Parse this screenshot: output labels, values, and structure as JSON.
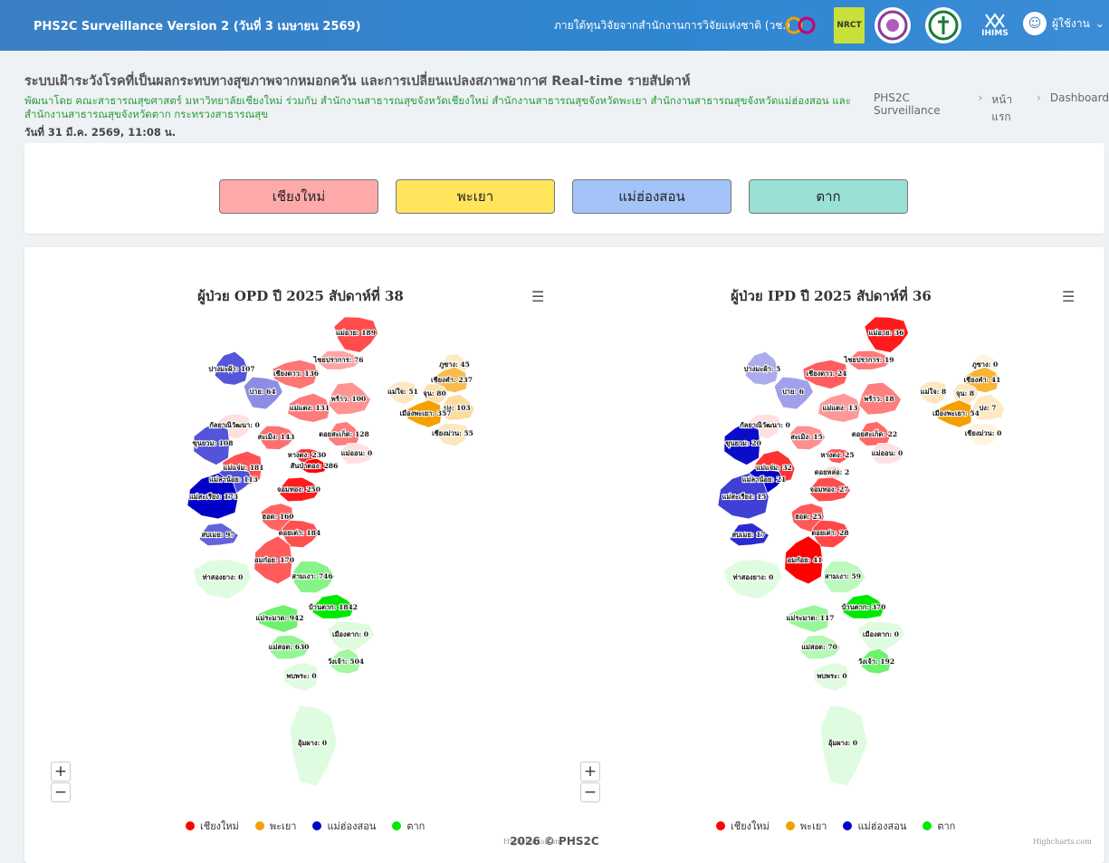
{
  "topbar": {
    "title": "PHS2C Surveillance Version 2 (วันที่ 3 เมษายน 2569)",
    "funding": "ภายใต้ทุนวิจัยจากสำนักงานการวิจัยแห่งชาติ (วช.)",
    "user": "ผู้ใช้งาน",
    "logos": [
      "NRCT",
      "IHIMS"
    ]
  },
  "header": {
    "title": "ระบบเฝ้าระวังโรคที่เป็นผลกระทบทางสุขภาพจากหมอกควัน และการเปลี่ยนแปลงสภาพอากาศ Real-time รายสัปดาห์",
    "subtitle": "พัฒนาโดย คณะสาธารณสุขศาสตร์ มหาวิทยาลัยเชียงใหม่ ร่วมกับ สำนักงานสาธารณสุขจังหวัดเชียงใหม่ สำนักงานสาธารณสุขจังหวัดพะเยา สำนักงานสาธารณสุขจังหวัดแม่ฮ่องสอน และ สำนักงานสาธารณสุขจังหวัดตาก กระทรวงสาธารณสุข",
    "date": "วันที่ 31 มี.ค. 2569, 11:08 น."
  },
  "breadcrumb": [
    "PHS2C Surveillance",
    "หน้าแรก",
    "Dashboard"
  ],
  "provinces": [
    {
      "label": "เชียงใหม่",
      "color": "#ffaaaa"
    },
    {
      "label": "พะเยา",
      "color": "#ffe45c"
    },
    {
      "label": "แม่ฮ่องสอน",
      "color": "#a4c3f8"
    },
    {
      "label": "ตาก",
      "color": "#9ae0d6"
    }
  ],
  "legend": [
    {
      "label": "เชียงใหม่",
      "color": "#ff0000"
    },
    {
      "label": "พะเยา",
      "color": "#f5a000"
    },
    {
      "label": "แม่ฮ่องสอน",
      "color": "#0000c8"
    },
    {
      "label": "ตาก",
      "color": "#00e800"
    }
  ],
  "credit": "Highcharts.com",
  "footer": "2026 © PHS2C",
  "chart_data": [
    {
      "type": "map",
      "title": "ผู้ป่วย OPD ปี 2025 สัปดาห์ที่ 38",
      "regions": [
        {
          "name": "แม่อาย",
          "value": 189
        },
        {
          "name": "ไชยปราการ",
          "value": 76
        },
        {
          "name": "ปางมะผ้า",
          "value": 107
        },
        {
          "name": "เชียงดาว",
          "value": 136
        },
        {
          "name": "ปาย",
          "value": 64
        },
        {
          "name": "พร้าว",
          "value": 100
        },
        {
          "name": "แม่แตง",
          "value": 131
        },
        {
          "name": "กัลยาณิวัฒนา",
          "value": 0
        },
        {
          "name": "สะเมิง",
          "value": 143
        },
        {
          "name": "ดอยสะเก็ด",
          "value": 128
        },
        {
          "name": "ขุนยวม",
          "value": 108
        },
        {
          "name": "หางดง",
          "value": 230
        },
        {
          "name": "แม่ออน",
          "value": 0
        },
        {
          "name": "สันป่าตอง",
          "value": 286
        },
        {
          "name": "แม่แจ่ม",
          "value": 181
        },
        {
          "name": "แม่ลาน้อย",
          "value": 113
        },
        {
          "name": "จอมทอง",
          "value": 250
        },
        {
          "name": "แม่สะเรียง",
          "value": 173
        },
        {
          "name": "ฮอด",
          "value": 160
        },
        {
          "name": "ดอยเต่า",
          "value": 184
        },
        {
          "name": "สบเมย",
          "value": 97
        },
        {
          "name": "อมก๋อย",
          "value": 170
        },
        {
          "name": "ท่าสองยาง",
          "value": 0
        },
        {
          "name": "สามเงา",
          "value": 746
        },
        {
          "name": "บ้านตาก",
          "value": 1842
        },
        {
          "name": "แม่ระมาด",
          "value": 942
        },
        {
          "name": "เมืองตาก",
          "value": 0
        },
        {
          "name": "แม่สอด",
          "value": 630
        },
        {
          "name": "วังเจ้า",
          "value": 504
        },
        {
          "name": "พบพระ",
          "value": 0
        },
        {
          "name": "อุ้มผาง",
          "value": 0
        },
        {
          "name": "ภูซาง",
          "value": 45
        },
        {
          "name": "เชียงคำ",
          "value": 237
        },
        {
          "name": "แม่ใจ",
          "value": 51
        },
        {
          "name": "จุน",
          "value": 80
        },
        {
          "name": "ปง",
          "value": 103
        },
        {
          "name": "เมืองพะเยา",
          "value": 357
        },
        {
          "name": "เชียงม่วน",
          "value": 55
        }
      ]
    },
    {
      "type": "map",
      "title": "ผู้ป่วย IPD ปี 2025 สัปดาห์ที่ 36",
      "regions": [
        {
          "name": "แม่อาย",
          "value": 36
        },
        {
          "name": "ไชยปราการ",
          "value": 19
        },
        {
          "name": "ปางมะผ้า",
          "value": 5
        },
        {
          "name": "เชียงดาว",
          "value": 24
        },
        {
          "name": "ปาย",
          "value": 6
        },
        {
          "name": "พร้าว",
          "value": 18
        },
        {
          "name": "แม่แตง",
          "value": 13
        },
        {
          "name": "กัลยาณิวัฒนา",
          "value": 0
        },
        {
          "name": "สะเมิง",
          "value": 15
        },
        {
          "name": "ดอยสะเก็ด",
          "value": 22
        },
        {
          "name": "ขุนยวม",
          "value": 20
        },
        {
          "name": "หางดง",
          "value": 25
        },
        {
          "name": "แม่ออน",
          "value": 0
        },
        {
          "name": "แม่แจ่ม",
          "value": 32
        },
        {
          "name": "ดอยหล่อ",
          "value": 2
        },
        {
          "name": "แม่ลาน้อย",
          "value": 21
        },
        {
          "name": "จอมทอง",
          "value": 27
        },
        {
          "name": "แม่สะเรียง",
          "value": 15
        },
        {
          "name": "ฮอด",
          "value": 25
        },
        {
          "name": "ดอยเต่า",
          "value": 28
        },
        {
          "name": "สบเมย",
          "value": 17
        },
        {
          "name": "อมก๋อย",
          "value": 41
        },
        {
          "name": "ท่าสองยาง",
          "value": 0
        },
        {
          "name": "สามเงา",
          "value": 59
        },
        {
          "name": "บ้านตาก",
          "value": 370
        },
        {
          "name": "แม่ระมาด",
          "value": 117
        },
        {
          "name": "เมืองตาก",
          "value": 0
        },
        {
          "name": "แม่สอด",
          "value": 70
        },
        {
          "name": "วังเจ้า",
          "value": 192
        },
        {
          "name": "พบพระ",
          "value": 0
        },
        {
          "name": "อุ้มผาง",
          "value": 0
        },
        {
          "name": "ภูซาง",
          "value": 0
        },
        {
          "name": "เชียงคำ",
          "value": 41
        },
        {
          "name": "แม่ใจ",
          "value": 8
        },
        {
          "name": "จุน",
          "value": 8
        },
        {
          "name": "ปง",
          "value": 7
        },
        {
          "name": "เมืองพะเยา",
          "value": 54
        },
        {
          "name": "เชียงม่วน",
          "value": 0
        }
      ]
    }
  ]
}
